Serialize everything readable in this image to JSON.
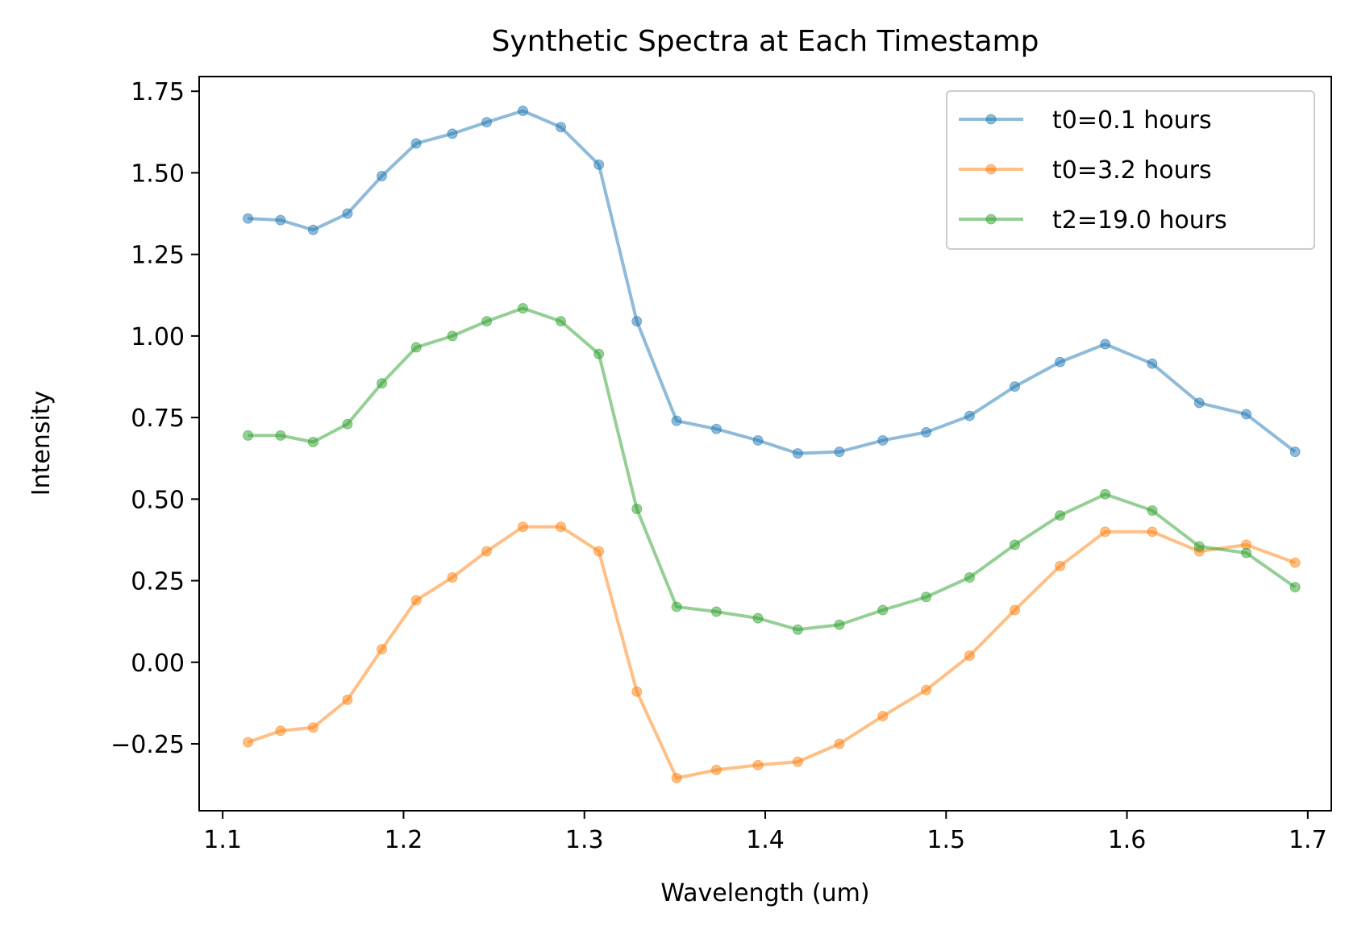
{
  "chart_data": {
    "type": "line",
    "title": "Synthetic Spectra at Each Timestamp",
    "xlabel": "Wavelength (um)",
    "ylabel": "Intensity",
    "xlim": [
      1.087,
      1.713
    ],
    "ylim": [
      -0.455,
      1.795
    ],
    "x_ticks": [
      1.1,
      1.2,
      1.3,
      1.4,
      1.5,
      1.6,
      1.7
    ],
    "x_tick_labels": [
      "1.1",
      "1.2",
      "1.3",
      "1.4",
      "1.5",
      "1.6",
      "1.7"
    ],
    "y_ticks": [
      -0.25,
      0.0,
      0.25,
      0.5,
      0.75,
      1.0,
      1.25,
      1.5,
      1.75
    ],
    "y_tick_labels": [
      "−0.25",
      "0.00",
      "0.25",
      "0.50",
      "0.75",
      "1.00",
      "1.25",
      "1.50",
      "1.75"
    ],
    "grid": false,
    "legend_position": "top-right",
    "x": [
      1.114,
      1.132,
      1.15,
      1.169,
      1.188,
      1.207,
      1.227,
      1.246,
      1.266,
      1.287,
      1.308,
      1.329,
      1.351,
      1.373,
      1.396,
      1.418,
      1.441,
      1.465,
      1.489,
      1.513,
      1.538,
      1.563,
      1.588,
      1.614,
      1.64,
      1.666,
      1.693
    ],
    "series": [
      {
        "name": "t0=0.1 hours",
        "color": "#1f77b4",
        "values": [
          1.36,
          1.355,
          1.325,
          1.375,
          1.49,
          1.59,
          1.62,
          1.655,
          1.69,
          1.64,
          1.525,
          1.045,
          0.74,
          0.715,
          0.68,
          0.64,
          0.645,
          0.68,
          0.705,
          0.755,
          0.845,
          0.92,
          0.975,
          0.915,
          0.795,
          0.76,
          0.645
        ]
      },
      {
        "name": "t0=3.2 hours",
        "color": "#ff7f0e",
        "values": [
          -0.245,
          -0.21,
          -0.2,
          -0.115,
          0.04,
          0.19,
          0.26,
          0.34,
          0.415,
          0.415,
          0.34,
          -0.09,
          -0.355,
          -0.33,
          -0.315,
          -0.305,
          -0.25,
          -0.165,
          -0.085,
          0.02,
          0.16,
          0.295,
          0.4,
          0.4,
          0.34,
          0.36,
          0.305
        ]
      },
      {
        "name": "t2=19.0 hours",
        "color": "#2ca02c",
        "values": [
          0.695,
          0.695,
          0.675,
          0.73,
          0.855,
          0.965,
          1.0,
          1.045,
          1.085,
          1.045,
          0.945,
          0.47,
          0.17,
          0.155,
          0.135,
          0.1,
          0.115,
          0.16,
          0.2,
          0.26,
          0.36,
          0.45,
          0.515,
          0.465,
          0.355,
          0.335,
          0.23
        ]
      }
    ]
  }
}
